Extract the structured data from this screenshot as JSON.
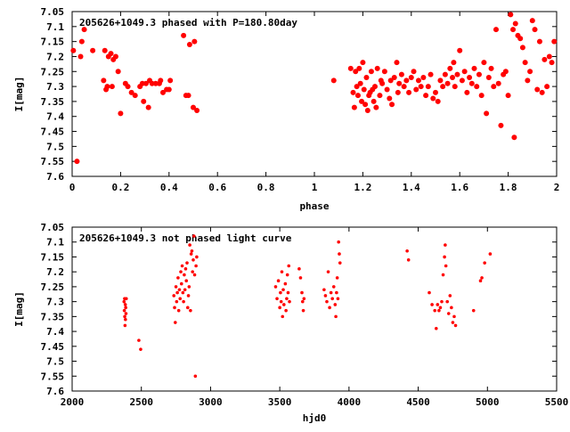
{
  "colors": {
    "points": "#ff0000",
    "axes": "#000000",
    "background": "#ffffff"
  },
  "chart_data": [
    {
      "type": "scatter",
      "title": "205626+1049.3 phased with P=180.80day",
      "xlabel": "phase",
      "ylabel": "I[mag]",
      "xlim": [
        0,
        2
      ],
      "ylim": [
        7.05,
        7.6
      ],
      "y_inverted": true,
      "grid": false,
      "marker": "filled-circle",
      "xticks": [
        "0",
        "0.2",
        "0.4",
        "0.6",
        "0.8",
        "1",
        "1.2",
        "1.4",
        "1.6",
        "1.8",
        "2"
      ],
      "yticks": [
        "7.05",
        "7.1",
        "7.15",
        "7.2",
        "7.25",
        "7.3",
        "7.35",
        "7.4",
        "7.45",
        "7.5",
        "7.55",
        "7.6"
      ],
      "series": [
        {
          "color": "#ff0000",
          "points": [
            [
              0.005,
              7.18
            ],
            [
              0.02,
              7.55
            ],
            [
              0.035,
              7.2
            ],
            [
              0.04,
              7.15
            ],
            [
              0.05,
              7.11
            ],
            [
              0.085,
              7.18
            ],
            [
              0.13,
              7.28
            ],
            [
              0.135,
              7.18
            ],
            [
              0.14,
              7.31
            ],
            [
              0.145,
              7.3
            ],
            [
              0.15,
              7.2
            ],
            [
              0.16,
              7.19
            ],
            [
              0.165,
              7.3
            ],
            [
              0.17,
              7.21
            ],
            [
              0.18,
              7.2
            ],
            [
              0.19,
              7.25
            ],
            [
              0.2,
              7.39
            ],
            [
              0.22,
              7.29
            ],
            [
              0.23,
              7.3
            ],
            [
              0.245,
              7.32
            ],
            [
              0.26,
              7.33
            ],
            [
              0.28,
              7.3
            ],
            [
              0.29,
              7.29
            ],
            [
              0.295,
              7.35
            ],
            [
              0.305,
              7.29
            ],
            [
              0.315,
              7.37
            ],
            [
              0.32,
              7.28
            ],
            [
              0.33,
              7.29
            ],
            [
              0.345,
              7.29
            ],
            [
              0.36,
              7.29
            ],
            [
              0.365,
              7.28
            ],
            [
              0.375,
              7.32
            ],
            [
              0.39,
              7.31
            ],
            [
              0.4,
              7.31
            ],
            [
              0.405,
              7.28
            ],
            [
              0.46,
              7.13
            ],
            [
              0.47,
              7.33
            ],
            [
              0.48,
              7.33
            ],
            [
              0.485,
              7.16
            ],
            [
              0.5,
              7.37
            ],
            [
              0.505,
              7.15
            ],
            [
              0.515,
              7.38
            ],
            [
              1.08,
              7.28
            ],
            [
              1.15,
              7.24
            ],
            [
              1.16,
              7.32
            ],
            [
              1.165,
              7.37
            ],
            [
              1.17,
              7.25
            ],
            [
              1.175,
              7.3
            ],
            [
              1.18,
              7.33
            ],
            [
              1.185,
              7.24
            ],
            [
              1.19,
              7.29
            ],
            [
              1.195,
              7.35
            ],
            [
              1.2,
              7.22
            ],
            [
              1.205,
              7.31
            ],
            [
              1.21,
              7.36
            ],
            [
              1.215,
              7.27
            ],
            [
              1.22,
              7.38
            ],
            [
              1.225,
              7.33
            ],
            [
              1.23,
              7.32
            ],
            [
              1.235,
              7.25
            ],
            [
              1.24,
              7.31
            ],
            [
              1.245,
              7.35
            ],
            [
              1.25,
              7.3
            ],
            [
              1.255,
              7.37
            ],
            [
              1.26,
              7.24
            ],
            [
              1.27,
              7.33
            ],
            [
              1.275,
              7.28
            ],
            [
              1.28,
              7.29
            ],
            [
              1.29,
              7.25
            ],
            [
              1.3,
              7.31
            ],
            [
              1.31,
              7.34
            ],
            [
              1.315,
              7.28
            ],
            [
              1.32,
              7.36
            ],
            [
              1.33,
              7.27
            ],
            [
              1.34,
              7.22
            ],
            [
              1.345,
              7.32
            ],
            [
              1.35,
              7.29
            ],
            [
              1.36,
              7.26
            ],
            [
              1.37,
              7.3
            ],
            [
              1.38,
              7.28
            ],
            [
              1.39,
              7.32
            ],
            [
              1.4,
              7.27
            ],
            [
              1.41,
              7.25
            ],
            [
              1.42,
              7.31
            ],
            [
              1.43,
              7.28
            ],
            [
              1.44,
              7.3
            ],
            [
              1.45,
              7.27
            ],
            [
              1.46,
              7.33
            ],
            [
              1.47,
              7.3
            ],
            [
              1.48,
              7.26
            ],
            [
              1.49,
              7.34
            ],
            [
              1.5,
              7.32
            ],
            [
              1.51,
              7.35
            ],
            [
              1.52,
              7.28
            ],
            [
              1.53,
              7.3
            ],
            [
              1.54,
              7.26
            ],
            [
              1.55,
              7.29
            ],
            [
              1.56,
              7.24
            ],
            [
              1.57,
              7.27
            ],
            [
              1.575,
              7.22
            ],
            [
              1.58,
              7.3
            ],
            [
              1.59,
              7.26
            ],
            [
              1.6,
              7.18
            ],
            [
              1.61,
              7.28
            ],
            [
              1.62,
              7.25
            ],
            [
              1.63,
              7.32
            ],
            [
              1.64,
              7.27
            ],
            [
              1.65,
              7.29
            ],
            [
              1.66,
              7.24
            ],
            [
              1.67,
              7.3
            ],
            [
              1.68,
              7.26
            ],
            [
              1.69,
              7.33
            ],
            [
              1.7,
              7.22
            ],
            [
              1.71,
              7.39
            ],
            [
              1.72,
              7.27
            ],
            [
              1.73,
              7.24
            ],
            [
              1.74,
              7.3
            ],
            [
              1.75,
              7.11
            ],
            [
              1.76,
              7.29
            ],
            [
              1.77,
              7.43
            ],
            [
              1.78,
              7.26
            ],
            [
              1.79,
              7.25
            ],
            [
              1.8,
              7.33
            ],
            [
              1.81,
              7.06
            ],
            [
              1.82,
              7.11
            ],
            [
              1.825,
              7.47
            ],
            [
              1.83,
              7.09
            ],
            [
              1.84,
              7.13
            ],
            [
              1.85,
              7.14
            ],
            [
              1.86,
              7.17
            ],
            [
              1.87,
              7.22
            ],
            [
              1.88,
              7.28
            ],
            [
              1.89,
              7.25
            ],
            [
              1.9,
              7.08
            ],
            [
              1.91,
              7.11
            ],
            [
              1.92,
              7.31
            ],
            [
              1.93,
              7.15
            ],
            [
              1.94,
              7.32
            ],
            [
              1.95,
              7.21
            ],
            [
              1.96,
              7.3
            ],
            [
              1.97,
              7.2
            ],
            [
              1.98,
              7.22
            ],
            [
              1.99,
              7.15
            ]
          ]
        }
      ]
    },
    {
      "type": "scatter",
      "title": "205626+1049.3 not phased light curve",
      "xlabel": "hjd0",
      "ylabel": "I[mag]",
      "xlim": [
        2000,
        5500
      ],
      "ylim": [
        7.05,
        7.6
      ],
      "y_inverted": true,
      "grid": false,
      "marker": "small-dot",
      "xticks": [
        "2000",
        "2500",
        "3000",
        "3500",
        "4000",
        "4500",
        "5000",
        "5500"
      ],
      "yticks": [
        "7.05",
        "7.1",
        "7.15",
        "7.2",
        "7.25",
        "7.3",
        "7.35",
        "7.4",
        "7.45",
        "7.5",
        "7.55",
        "7.6"
      ],
      "series": [
        {
          "color": "#ff0000",
          "points": [
            [
              2375,
              7.3
            ],
            [
              2377,
              7.33
            ],
            [
              2379,
              7.29
            ],
            [
              2380,
              7.35
            ],
            [
              2382,
              7.38
            ],
            [
              2384,
              7.31
            ],
            [
              2385,
              7.36
            ],
            [
              2387,
              7.32
            ],
            [
              2389,
              7.34
            ],
            [
              2391,
              7.29
            ],
            [
              2482,
              7.43
            ],
            [
              2495,
              7.46
            ],
            [
              2735,
              7.28
            ],
            [
              2740,
              7.32
            ],
            [
              2745,
              7.37
            ],
            [
              2750,
              7.25
            ],
            [
              2755,
              7.3
            ],
            [
              2760,
              7.27
            ],
            [
              2765,
              7.22
            ],
            [
              2770,
              7.33
            ],
            [
              2775,
              7.26
            ],
            [
              2780,
              7.29
            ],
            [
              2785,
              7.2
            ],
            [
              2790,
              7.24
            ],
            [
              2795,
              7.18
            ],
            [
              2800,
              7.27
            ],
            [
              2805,
              7.3
            ],
            [
              2810,
              7.21
            ],
            [
              2815,
              7.26
            ],
            [
              2820,
              7.19
            ],
            [
              2825,
              7.23
            ],
            [
              2830,
              7.17
            ],
            [
              2835,
              7.32
            ],
            [
              2840,
              7.28
            ],
            [
              2845,
              7.25
            ],
            [
              2850,
              7.11
            ],
            [
              2855,
              7.33
            ],
            [
              2860,
              7.14
            ],
            [
              2865,
              7.13
            ],
            [
              2870,
              7.2
            ],
            [
              2875,
              7.16
            ],
            [
              2880,
              7.08
            ],
            [
              2885,
              7.21
            ],
            [
              2890,
              7.55
            ],
            [
              2895,
              7.18
            ],
            [
              2900,
              7.15
            ],
            [
              3470,
              7.25
            ],
            [
              3480,
              7.29
            ],
            [
              3490,
              7.23
            ],
            [
              3500,
              7.32
            ],
            [
              3505,
              7.27
            ],
            [
              3510,
              7.3
            ],
            [
              3515,
              7.2
            ],
            [
              3520,
              7.35
            ],
            [
              3525,
              7.26
            ],
            [
              3530,
              7.31
            ],
            [
              3540,
              7.24
            ],
            [
              3545,
              7.33
            ],
            [
              3550,
              7.29
            ],
            [
              3555,
              7.21
            ],
            [
              3560,
              7.27
            ],
            [
              3565,
              7.18
            ],
            [
              3570,
              7.3
            ],
            [
              3640,
              7.19
            ],
            [
              3650,
              7.22
            ],
            [
              3660,
              7.27
            ],
            [
              3665,
              7.3
            ],
            [
              3670,
              7.33
            ],
            [
              3675,
              7.29
            ],
            [
              3820,
              7.26
            ],
            [
              3830,
              7.28
            ],
            [
              3840,
              7.3
            ],
            [
              3850,
              7.2
            ],
            [
              3860,
              7.32
            ],
            [
              3870,
              7.27
            ],
            [
              3880,
              7.29
            ],
            [
              3890,
              7.25
            ],
            [
              3900,
              7.31
            ],
            [
              3905,
              7.35
            ],
            [
              3910,
              7.27
            ],
            [
              3915,
              7.22
            ],
            [
              3920,
              7.29
            ],
            [
              3925,
              7.1
            ],
            [
              3930,
              7.14
            ],
            [
              3935,
              7.17
            ],
            [
              4420,
              7.13
            ],
            [
              4430,
              7.16
            ],
            [
              4580,
              7.27
            ],
            [
              4600,
              7.31
            ],
            [
              4620,
              7.33
            ],
            [
              4630,
              7.39
            ],
            [
              4640,
              7.31
            ],
            [
              4650,
              7.33
            ],
            [
              4660,
              7.32
            ],
            [
              4670,
              7.3
            ],
            [
              4680,
              7.21
            ],
            [
              4690,
              7.15
            ],
            [
              4695,
              7.11
            ],
            [
              4700,
              7.18
            ],
            [
              4710,
              7.3
            ],
            [
              4720,
              7.34
            ],
            [
              4730,
              7.28
            ],
            [
              4740,
              7.32
            ],
            [
              4750,
              7.37
            ],
            [
              4760,
              7.35
            ],
            [
              4770,
              7.38
            ],
            [
              4900,
              7.33
            ],
            [
              4950,
              7.23
            ],
            [
              4960,
              7.22
            ],
            [
              4980,
              7.17
            ],
            [
              5020,
              7.14
            ]
          ]
        }
      ]
    }
  ]
}
